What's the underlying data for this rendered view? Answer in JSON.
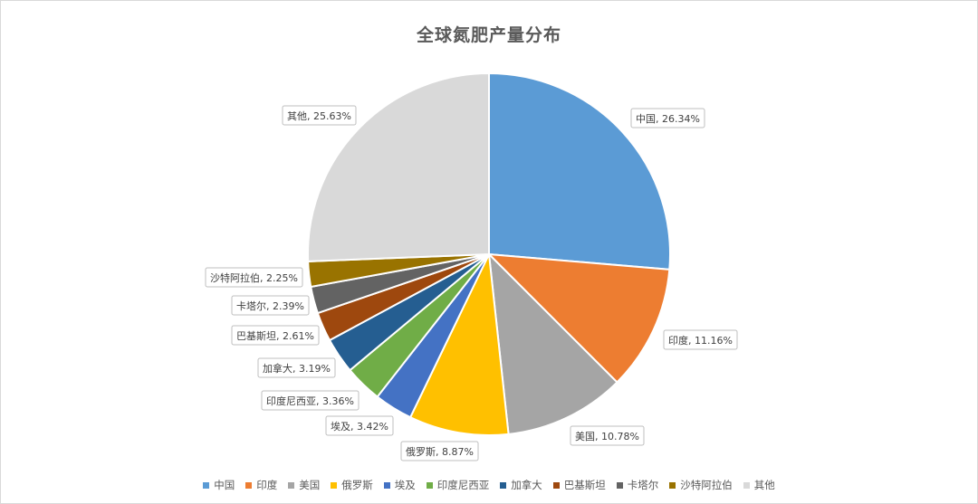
{
  "chart_data": {
    "type": "pie",
    "title": "全球氮肥产量分布",
    "legend_position": "bottom",
    "unit": "%",
    "slices": [
      {
        "name": "中国",
        "value": 26.34,
        "label": "中国, 26.34%",
        "color": "#5b9bd5"
      },
      {
        "name": "印度",
        "value": 11.16,
        "label": "印度, 11.16%",
        "color": "#ed7d31"
      },
      {
        "name": "美国",
        "value": 10.78,
        "label": "美国, 10.78%",
        "color": "#a5a5a5"
      },
      {
        "name": "俄罗斯",
        "value": 8.87,
        "label": "俄罗斯, 8.87%",
        "color": "#ffc000"
      },
      {
        "name": "埃及",
        "value": 3.42,
        "label": "埃及, 3.42%",
        "color": "#4472c4"
      },
      {
        "name": "印度尼西亚",
        "value": 3.36,
        "label": "印度尼西亚, 3.36%",
        "color": "#70ad47"
      },
      {
        "name": "加拿大",
        "value": 3.19,
        "label": "加拿大, 3.19%",
        "color": "#255e91"
      },
      {
        "name": "巴基斯坦",
        "value": 2.61,
        "label": "巴基斯坦, 2.61%",
        "color": "#9e480e"
      },
      {
        "name": "卡塔尔",
        "value": 2.39,
        "label": "卡塔尔, 2.39%",
        "color": "#636363"
      },
      {
        "name": "沙特阿拉伯",
        "value": 2.25,
        "label": "沙特阿拉伯, 2.25%",
        "color": "#997300"
      },
      {
        "name": "其他",
        "value": 25.63,
        "label": "其他, 25.63%",
        "color": "#d9d9d9"
      }
    ]
  }
}
